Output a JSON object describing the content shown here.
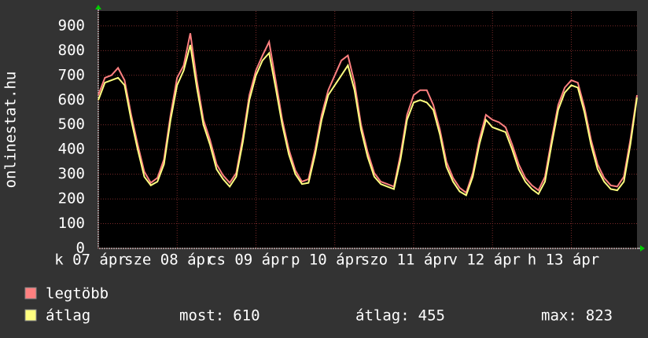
{
  "chart_data": {
    "type": "line",
    "y_label": "onlinestat.hu",
    "x": [
      0,
      2,
      4,
      6,
      8,
      10,
      12,
      14,
      16,
      18,
      20,
      22,
      24,
      26,
      28,
      30,
      32,
      34,
      36,
      38,
      40,
      42,
      44,
      46,
      48,
      50,
      52,
      54,
      56,
      58,
      60,
      62,
      64,
      66,
      68,
      70,
      72,
      74,
      76,
      78,
      80,
      82,
      84,
      86,
      88,
      90,
      92,
      94,
      96,
      98,
      100,
      102,
      104,
      106,
      108,
      110,
      112,
      114,
      116,
      118,
      120,
      122,
      124,
      126,
      128,
      130,
      132,
      134,
      136,
      138,
      140,
      142,
      144,
      146,
      148,
      150,
      152,
      154,
      156,
      158,
      160,
      162,
      164
    ],
    "series": [
      {
        "name": "legtöbb",
        "color": "#ff8080",
        "values": [
          620,
          690,
          700,
          730,
          680,
          540,
          420,
          310,
          265,
          285,
          360,
          540,
          690,
          740,
          870,
          680,
          520,
          440,
          340,
          295,
          265,
          305,
          450,
          620,
          720,
          780,
          835,
          680,
          520,
          400,
          315,
          270,
          280,
          400,
          540,
          640,
          700,
          760,
          780,
          670,
          500,
          390,
          305,
          270,
          260,
          250,
          380,
          540,
          620,
          640,
          640,
          580,
          480,
          350,
          285,
          245,
          225,
          305,
          440,
          540,
          520,
          510,
          490,
          420,
          340,
          285,
          255,
          235,
          290,
          440,
          580,
          650,
          680,
          670,
          570,
          440,
          340,
          285,
          255,
          250,
          290,
          440,
          620
        ]
      },
      {
        "name": "átlag",
        "color": "#ffff80",
        "values": [
          600,
          670,
          680,
          690,
          660,
          520,
          400,
          290,
          255,
          270,
          340,
          520,
          660,
          720,
          823,
          650,
          500,
          420,
          320,
          280,
          250,
          290,
          430,
          600,
          700,
          760,
          790,
          650,
          500,
          380,
          300,
          260,
          265,
          380,
          520,
          620,
          660,
          700,
          740,
          640,
          480,
          370,
          290,
          260,
          250,
          240,
          360,
          520,
          590,
          600,
          590,
          560,
          460,
          330,
          270,
          230,
          215,
          290,
          420,
          520,
          490,
          480,
          470,
          400,
          320,
          270,
          240,
          220,
          270,
          420,
          560,
          630,
          660,
          650,
          550,
          420,
          320,
          270,
          240,
          235,
          270,
          420,
          610
        ]
      }
    ],
    "stats": [
      {
        "label": "most:",
        "value": 610
      },
      {
        "label": "átlag:",
        "value": 455
      },
      {
        "label": "max:",
        "value": 823
      }
    ],
    "xlim": [
      0,
      164
    ],
    "xticks": [
      {
        "value": 0,
        "label": "k 07 ápr"
      },
      {
        "value": 24,
        "label": "sze 08 ápr"
      },
      {
        "value": 48,
        "label": "cs 09 ápr"
      },
      {
        "value": 72,
        "label": "p 10 ápr"
      },
      {
        "value": 96,
        "label": "szo 11 ápr"
      },
      {
        "value": 120,
        "label": "v 12 ápr"
      },
      {
        "value": 144,
        "label": "h 13 ápr"
      }
    ],
    "ylim": [
      0,
      960
    ],
    "yticks": [
      0,
      100,
      200,
      300,
      400,
      500,
      600,
      700,
      800,
      900
    ],
    "grid": true
  }
}
